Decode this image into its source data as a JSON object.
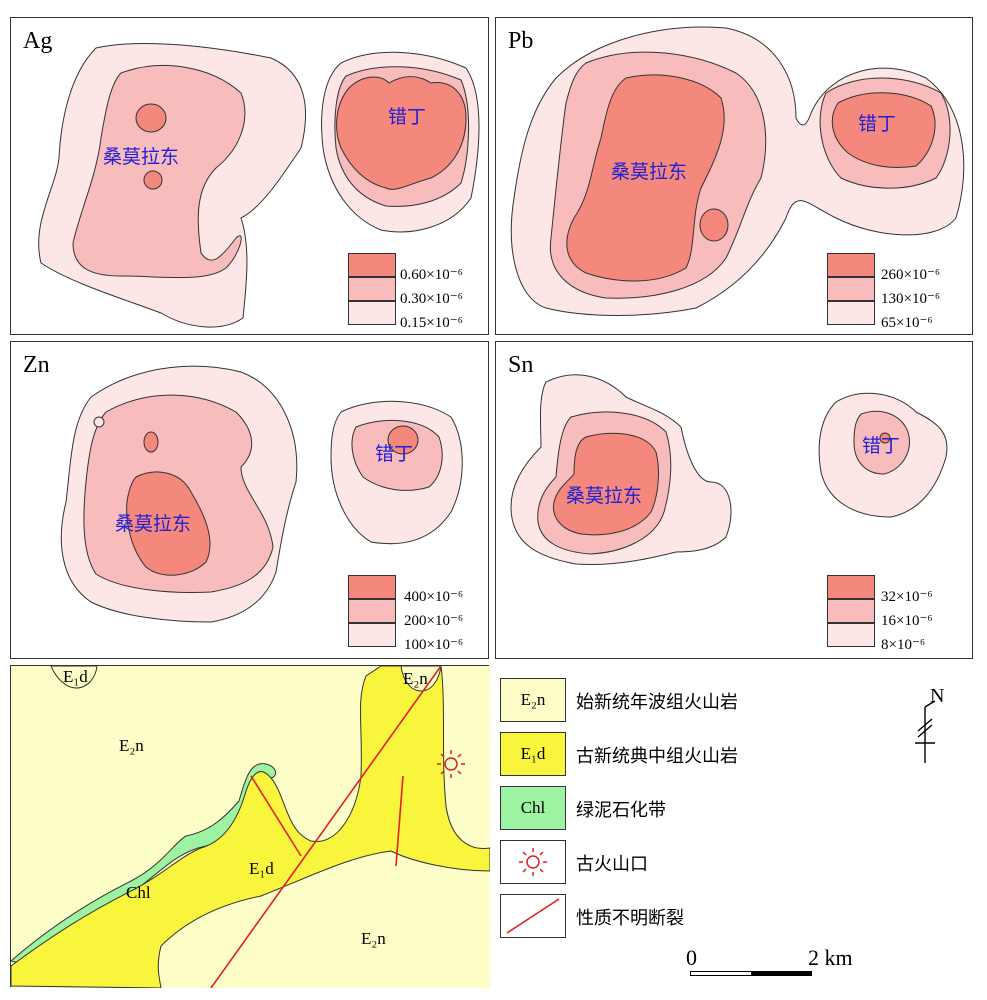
{
  "colors": {
    "level_high": "#f4887c",
    "level_mid": "#f8bcbc",
    "level_low": "#fde6e6",
    "E2n": "#fdfdc8",
    "E1d": "#f8f53c",
    "Chl": "#9ef3a2",
    "fault": "#e02020"
  },
  "panels": [
    {
      "element": "Ag",
      "labels": [
        "桑莫拉东",
        "错丁"
      ],
      "legend": [
        "0.60×10⁻⁶",
        "0.30×10⁻⁶",
        "0.15×10⁻⁶"
      ]
    },
    {
      "element": "Pb",
      "labels": [
        "桑莫拉东",
        "错丁"
      ],
      "legend": [
        "260×10⁻⁶",
        "130×10⁻⁶",
        "65×10⁻⁶"
      ]
    },
    {
      "element": "Zn",
      "labels": [
        "桑莫拉东",
        "错丁"
      ],
      "legend": [
        "400×10⁻⁶",
        "200×10⁻⁶",
        "100×10⁻⁶"
      ]
    },
    {
      "element": "Sn",
      "labels": [
        "桑莫拉东",
        "错丁"
      ],
      "legend": [
        "32×10⁻⁶",
        "16×10⁻⁶",
        "8×10⁻⁶"
      ]
    }
  ],
  "geology_map": {
    "labels": [
      "E₁d",
      "E₂n",
      "E₂n",
      "E₁d",
      "Chl",
      "E₂n"
    ]
  },
  "geology_legend": [
    {
      "symbol": "E₂n",
      "text": "始新统年波组火山岩",
      "icon": "unit-E2n"
    },
    {
      "symbol": "E₁d",
      "text": "古新统典中组火山岩",
      "icon": "unit-E1d"
    },
    {
      "symbol": "Chl",
      "text": "绿泥石化带",
      "icon": "unit-chl"
    },
    {
      "symbol": "",
      "text": "古火山口",
      "icon": "sun-icon"
    },
    {
      "symbol": "",
      "text": "性质不明断裂",
      "icon": "fault-line-icon"
    }
  ],
  "north_arrow": {
    "label": "N"
  },
  "scale_bar": {
    "start": "0",
    "end": "2 km"
  }
}
